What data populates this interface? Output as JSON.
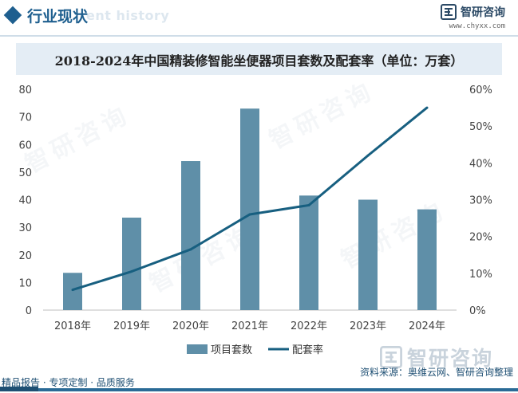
{
  "header": {
    "section_title": "行业现状",
    "section_ghost": "ent history",
    "logo_name": "智研咨询",
    "logo_url": "www.chyxx.com"
  },
  "chart_data": {
    "type": "bar",
    "title": "2018-2024年中国精装修智能坐便器项目套数及配套率（单位：万套）",
    "categories": [
      "2018年",
      "2019年",
      "2020年",
      "2021年",
      "2022年",
      "2023年",
      "2024年"
    ],
    "series": [
      {
        "name": "项目套数",
        "type": "bar",
        "axis": "left",
        "values": [
          13.5,
          33.5,
          54,
          73,
          41.5,
          40,
          36.5
        ]
      },
      {
        "name": "配套率",
        "type": "line",
        "axis": "right",
        "values": [
          5.5,
          10.5,
          16.5,
          26,
          28.5,
          42,
          55
        ]
      }
    ],
    "left_axis": {
      "min": 0,
      "max": 80,
      "ticks": [
        "0",
        "10",
        "20",
        "30",
        "40",
        "50",
        "60",
        "70",
        "80"
      ]
    },
    "right_axis": {
      "min": 0,
      "max": 60,
      "ticks": [
        "0%",
        "10%",
        "20%",
        "30%",
        "40%",
        "50%",
        "60%"
      ]
    },
    "grid": false,
    "legend_position": "bottom-center",
    "colors": {
      "bar": "#5f8fa8",
      "line": "#175f80",
      "axis": "#bfbfbf"
    }
  },
  "watermark": {
    "text": "智研咨询"
  },
  "brand_bottom": {
    "text": "智研咨询"
  },
  "footer": {
    "left": "精品报告 · 专项定制 · 品质服务",
    "source": "资料来源：奥维云网、智研咨询整理"
  }
}
